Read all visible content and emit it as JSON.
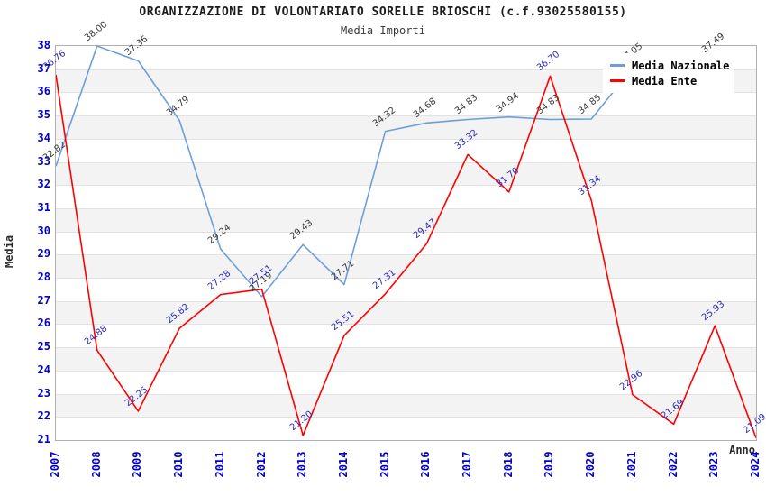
{
  "title": "ORGANIZZAZIONE DI VOLONTARIATO SORELLE BRIOSCHI (c.f.93025580155)",
  "subtitle": "Media Importi",
  "axes": {
    "y_label": "Media",
    "x_label": "Anno",
    "y_tick_color": "#0000cc",
    "x_tick_color": "#0000cc"
  },
  "legend": {
    "position": "top-right",
    "items": [
      {
        "label": "Media Nazionale",
        "color": "#6d9eda"
      },
      {
        "label": "Media Ente",
        "color": "#ff0000"
      }
    ]
  },
  "chart_data": {
    "type": "line",
    "title": "ORGANIZZAZIONE DI VOLONTARIATO SORELLE BRIOSCHI (c.f.93025580155)",
    "subtitle": "Media Importi",
    "xlabel": "Anno",
    "ylabel": "Media",
    "ylim": [
      21,
      38
    ],
    "y_ticks": [
      21,
      22,
      23,
      24,
      25,
      26,
      27,
      28,
      29,
      30,
      31,
      32,
      33,
      34,
      35,
      36,
      37,
      38
    ],
    "grid": true,
    "alternating_bands": true,
    "legend_position": "top-right",
    "categories": [
      "2007",
      "2008",
      "2009",
      "2010",
      "2011",
      "2012",
      "2013",
      "2014",
      "2015",
      "2016",
      "2017",
      "2018",
      "2019",
      "2020",
      "2021",
      "2022",
      "2023",
      "2024"
    ],
    "series": [
      {
        "name": "Media Nazionale",
        "color": "#6d9eda",
        "label_color": "#3a3a3a",
        "values": [
          32.82,
          38.0,
          37.36,
          34.79,
          29.24,
          27.19,
          29.43,
          27.71,
          34.32,
          34.68,
          34.83,
          34.94,
          34.83,
          34.85,
          37.05,
          null,
          37.49,
          null
        ]
      },
      {
        "name": "Media Ente",
        "color": "#ff0000",
        "label_color": "#2a2ac0",
        "values": [
          36.76,
          24.88,
          22.25,
          25.82,
          27.28,
          27.51,
          21.2,
          25.51,
          27.31,
          29.47,
          33.32,
          31.7,
          36.7,
          31.34,
          22.96,
          21.69,
          25.93,
          21.09
        ]
      }
    ]
  }
}
